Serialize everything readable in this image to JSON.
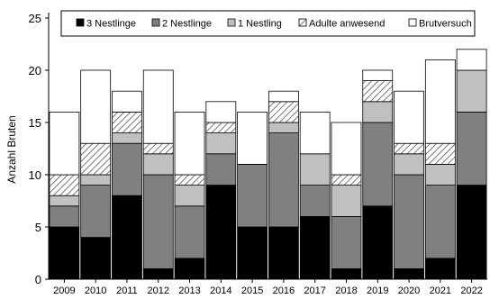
{
  "chart_data": {
    "type": "bar",
    "stacked": true,
    "title": "",
    "xlabel": "",
    "ylabel": "Anzahl Bruten",
    "ylim": [
      0,
      25
    ],
    "yticks": [
      "0",
      "5",
      "10",
      "15",
      "20",
      "25"
    ],
    "grid": false,
    "legend_position": "top",
    "categories": [
      "2009",
      "2010",
      "2011",
      "2012",
      "2013",
      "2014",
      "2015",
      "2016",
      "2017",
      "2018",
      "2019",
      "2020",
      "2021",
      "2022"
    ],
    "series": [
      {
        "name": "3 Nestlinge",
        "color": "#000000",
        "pattern": "solid",
        "values": [
          5,
          4,
          8,
          1,
          2,
          9,
          5,
          5,
          6,
          1,
          7,
          1,
          2,
          9
        ]
      },
      {
        "name": "2 Nestlinge",
        "color": "#808080",
        "pattern": "solid",
        "values": [
          2,
          5,
          5,
          9,
          5,
          3,
          6,
          9,
          3,
          5,
          8,
          9,
          7,
          7
        ]
      },
      {
        "name": "1 Nestling",
        "color": "#c0c0c0",
        "pattern": "solid",
        "values": [
          1,
          1,
          1,
          2,
          2,
          2,
          0,
          1,
          3,
          3,
          2,
          2,
          2,
          4
        ]
      },
      {
        "name": "Adulte anwesend",
        "color": "#ffffff",
        "pattern": "hatch",
        "values": [
          2,
          3,
          2,
          1,
          1,
          1,
          0,
          2,
          0,
          1,
          2,
          1,
          2,
          0
        ]
      },
      {
        "name": "Brutversuch",
        "color": "#ffffff",
        "pattern": "solid",
        "values": [
          6,
          7,
          2,
          7,
          6,
          2,
          5,
          1,
          4,
          5,
          1,
          5,
          8,
          2
        ]
      }
    ]
  }
}
